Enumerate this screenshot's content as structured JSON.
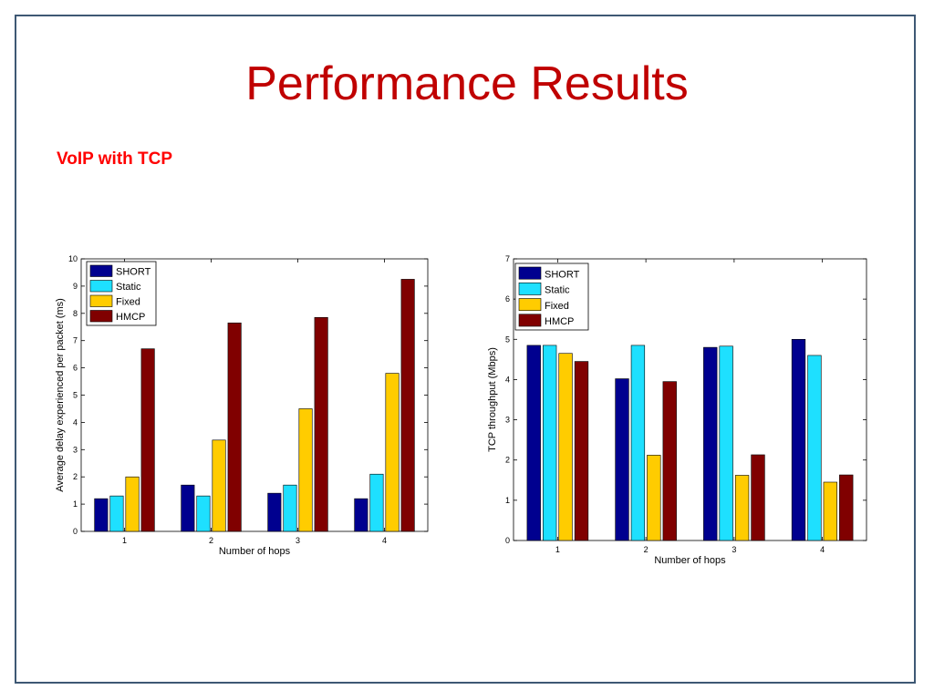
{
  "slide": {
    "title": "Performance Results",
    "subtitle": "VoIP with TCP"
  },
  "colors": {
    "title": "#c00000",
    "subtitle": "#ff0000",
    "frame": "#3e5874",
    "series": [
      "#00008f",
      "#1ee0ff",
      "#ffcc00",
      "#800000"
    ]
  },
  "chart_data": [
    {
      "type": "bar",
      "title": "",
      "xlabel": "Number of hops",
      "ylabel": "Average delay experienced per packet (ms)",
      "categories": [
        "1",
        "2",
        "3",
        "4"
      ],
      "ylim": [
        0,
        10
      ],
      "yticks": [
        "0",
        "1",
        "2",
        "3",
        "4",
        "5",
        "6",
        "7",
        "8",
        "9",
        "10"
      ],
      "legend_position": "top-left",
      "grid": false,
      "series": [
        {
          "name": "SHORT",
          "values": [
            1.2,
            1.7,
            1.4,
            1.2
          ]
        },
        {
          "name": "Static",
          "values": [
            1.3,
            1.3,
            1.7,
            2.1
          ]
        },
        {
          "name": "Fixed",
          "values": [
            2.0,
            3.35,
            4.5,
            5.8
          ]
        },
        {
          "name": "HMCP",
          "values": [
            6.7,
            7.65,
            7.85,
            9.25
          ]
        }
      ]
    },
    {
      "type": "bar",
      "title": "",
      "xlabel": "Number of hops",
      "ylabel": "TCP throughput (Mbps)",
      "categories": [
        "1",
        "2",
        "3",
        "4"
      ],
      "ylim": [
        0,
        7
      ],
      "yticks": [
        "0",
        "1",
        "2",
        "3",
        "4",
        "5",
        "6",
        "7"
      ],
      "legend_position": "top-left",
      "grid": false,
      "series": [
        {
          "name": "SHORT",
          "values": [
            4.85,
            4.02,
            4.8,
            5.0
          ]
        },
        {
          "name": "Static",
          "values": [
            4.85,
            4.85,
            4.83,
            4.6
          ]
        },
        {
          "name": "Fixed",
          "values": [
            4.65,
            2.12,
            1.62,
            1.45
          ]
        },
        {
          "name": "HMCP",
          "values": [
            4.45,
            3.95,
            2.13,
            1.63
          ]
        }
      ]
    }
  ]
}
